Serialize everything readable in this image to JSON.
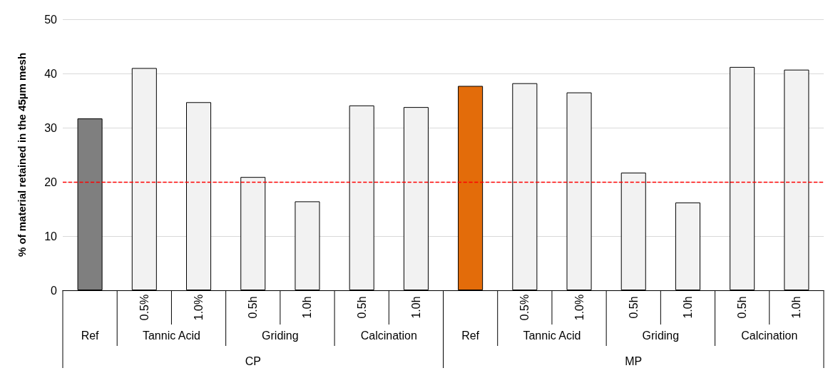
{
  "chart_data": {
    "type": "bar",
    "ylabel": "% of material retained in the 45µm mesh",
    "categories": [
      null,
      "0.5%",
      "1.0%",
      "0.5h",
      "1.0h",
      "0.5h",
      "1.0h",
      null,
      "0.5%",
      "1.0%",
      "0.5h",
      "1.0h",
      "0.5h",
      "1.0h"
    ],
    "values": [
      31.7,
      41.0,
      34.7,
      20.9,
      16.4,
      34.1,
      33.8,
      37.7,
      38.2,
      36.5,
      21.7,
      16.2,
      41.2,
      40.7
    ],
    "colors": [
      "#7f7f7f",
      "#f2f2f2",
      "#f2f2f2",
      "#f2f2f2",
      "#f2f2f2",
      "#f2f2f2",
      "#f2f2f2",
      "#e36c0a",
      "#f2f2f2",
      "#f2f2f2",
      "#f2f2f2",
      "#f2f2f2",
      "#f2f2f2",
      "#f2f2f2"
    ],
    "annotations": [
      "Ref",
      "Tannic Acid",
      "Griding",
      "Calcination",
      "Ref",
      "Tannic Acid",
      "Griding",
      "Calcination",
      "CP",
      "MP"
    ],
    "ylim": [
      0,
      50
    ],
    "yticks": [
      0,
      10,
      20,
      30,
      40,
      50
    ],
    "grid": "y",
    "ref_lines": [
      {
        "axis": "y",
        "value": 20,
        "label": null,
        "color": "#ff0000",
        "line_style": "dashed"
      }
    ]
  }
}
